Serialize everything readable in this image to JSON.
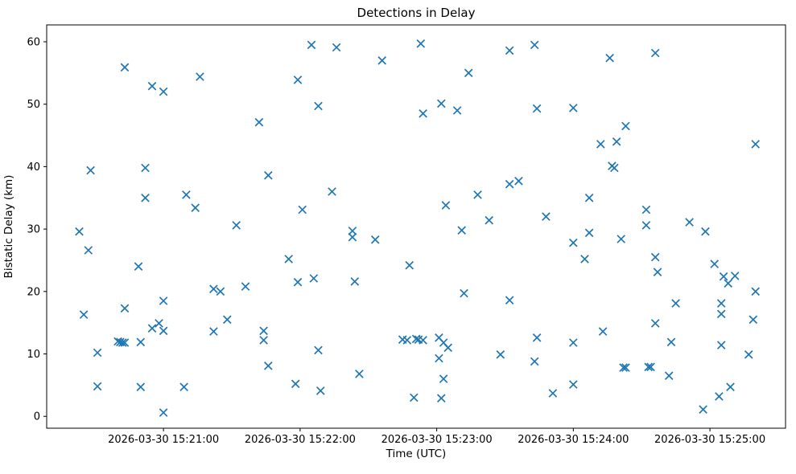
{
  "figure": {
    "title": "Detections in Delay",
    "xlabel": "Time (UTC)",
    "ylabel": "Bistatic Delay (km)"
  },
  "chart_data": {
    "type": "scatter",
    "title": "Detections in Delay",
    "xlabel": "Time (UTC)",
    "ylabel": "Bistatic Delay (km)",
    "marker": "x",
    "marker_color": "#1f77b4",
    "background_color": "#ffffff",
    "spine_color": "#000000",
    "grid": false,
    "legend": "none",
    "x_unit": "seconds after 2026-03-30 15:20:00 UTC",
    "xlim": [
      8.7,
      333.2
    ],
    "ylim": [
      -1.9,
      62.7
    ],
    "x_ticks": [
      {
        "value": 60,
        "label": "2026-03-30 15:21:00"
      },
      {
        "value": 120,
        "label": "2026-03-30 15:22:00"
      },
      {
        "value": 180,
        "label": "2026-03-30 15:23:00"
      },
      {
        "value": 240,
        "label": "2026-03-30 15:24:00"
      },
      {
        "value": 300,
        "label": "2026-03-30 15:25:00"
      }
    ],
    "y_ticks": [
      0,
      10,
      20,
      30,
      40,
      50,
      60
    ],
    "points": [
      [
        43,
        55.9
      ],
      [
        55,
        52.9
      ],
      [
        60,
        52.0
      ],
      [
        76,
        54.4
      ],
      [
        125,
        59.5
      ],
      [
        136,
        59.1
      ],
      [
        156,
        57.0
      ],
      [
        173,
        59.7
      ],
      [
        119,
        53.9
      ],
      [
        128,
        49.7
      ],
      [
        102,
        47.1
      ],
      [
        174,
        48.5
      ],
      [
        212,
        58.6
      ],
      [
        223,
        59.5
      ],
      [
        256,
        57.4
      ],
      [
        194,
        55.0
      ],
      [
        182,
        50.1
      ],
      [
        189,
        49.0
      ],
      [
        224,
        49.3
      ],
      [
        240,
        49.4
      ],
      [
        252,
        43.6
      ],
      [
        276,
        58.2
      ],
      [
        263,
        46.5
      ],
      [
        259,
        44.0
      ],
      [
        320,
        43.6
      ],
      [
        28,
        39.4
      ],
      [
        52,
        39.8
      ],
      [
        52,
        35.0
      ],
      [
        70,
        35.5
      ],
      [
        74,
        33.4
      ],
      [
        23,
        29.6
      ],
      [
        27,
        26.6
      ],
      [
        49,
        24.0
      ],
      [
        92,
        30.6
      ],
      [
        106,
        38.6
      ],
      [
        134,
        36.0
      ],
      [
        121,
        33.1
      ],
      [
        143,
        29.7
      ],
      [
        143,
        28.7
      ],
      [
        153,
        28.3
      ],
      [
        115,
        25.2
      ],
      [
        168,
        24.2
      ],
      [
        119,
        21.5
      ],
      [
        126,
        22.1
      ],
      [
        144,
        21.6
      ],
      [
        96,
        20.8
      ],
      [
        212,
        37.2
      ],
      [
        216,
        37.7
      ],
      [
        198,
        35.5
      ],
      [
        184,
        33.8
      ],
      [
        203,
        31.4
      ],
      [
        191,
        29.8
      ],
      [
        228,
        32.0
      ],
      [
        247,
        35.0
      ],
      [
        247,
        29.4
      ],
      [
        240,
        27.8
      ],
      [
        245,
        25.2
      ],
      [
        257,
        40.1
      ],
      [
        258,
        39.8
      ],
      [
        272,
        33.1
      ],
      [
        272,
        30.6
      ],
      [
        291,
        31.1
      ],
      [
        298,
        29.6
      ],
      [
        261,
        28.4
      ],
      [
        276,
        25.5
      ],
      [
        277,
        23.1
      ],
      [
        302,
        24.4
      ],
      [
        306,
        22.4
      ],
      [
        311,
        22.5
      ],
      [
        308,
        21.3
      ],
      [
        320,
        20.0
      ],
      [
        82,
        20.4
      ],
      [
        85,
        20.0
      ],
      [
        60,
        18.5
      ],
      [
        43,
        17.3
      ],
      [
        25,
        16.3
      ],
      [
        55,
        14.1
      ],
      [
        58,
        14.9
      ],
      [
        60,
        13.7
      ],
      [
        88,
        15.5
      ],
      [
        82,
        13.6
      ],
      [
        40,
        12.0
      ],
      [
        41,
        11.9
      ],
      [
        42,
        11.8
      ],
      [
        43,
        11.8
      ],
      [
        50,
        11.9
      ],
      [
        31,
        10.2
      ],
      [
        31,
        4.8
      ],
      [
        50,
        4.7
      ],
      [
        69,
        4.7
      ],
      [
        60,
        0.6
      ],
      [
        104,
        13.7
      ],
      [
        104,
        12.2
      ],
      [
        128,
        10.6
      ],
      [
        106,
        8.1
      ],
      [
        118,
        5.2
      ],
      [
        129,
        4.1
      ],
      [
        146,
        6.8
      ],
      [
        170,
        3.0
      ],
      [
        165,
        12.3
      ],
      [
        167,
        12.2
      ],
      [
        171,
        12.4
      ],
      [
        172,
        12.3
      ],
      [
        174,
        12.2
      ],
      [
        181,
        12.6
      ],
      [
        183,
        11.8
      ],
      [
        185,
        11.0
      ],
      [
        181,
        9.3
      ],
      [
        182,
        2.9
      ],
      [
        183,
        6.0
      ],
      [
        192,
        19.7
      ],
      [
        212,
        18.6
      ],
      [
        208,
        9.9
      ],
      [
        224,
        12.6
      ],
      [
        223,
        8.8
      ],
      [
        240,
        11.8
      ],
      [
        253,
        13.6
      ],
      [
        240,
        5.1
      ],
      [
        231,
        3.7
      ],
      [
        285,
        18.1
      ],
      [
        305,
        18.1
      ],
      [
        305,
        16.4
      ],
      [
        276,
        14.9
      ],
      [
        319,
        15.5
      ],
      [
        283,
        11.9
      ],
      [
        305,
        11.4
      ],
      [
        317,
        9.9
      ],
      [
        262,
        7.8
      ],
      [
        263,
        7.8
      ],
      [
        273,
        7.9
      ],
      [
        274,
        7.9
      ],
      [
        282,
        6.5
      ],
      [
        309,
        4.7
      ],
      [
        304,
        3.2
      ],
      [
        297,
        1.1
      ]
    ]
  }
}
